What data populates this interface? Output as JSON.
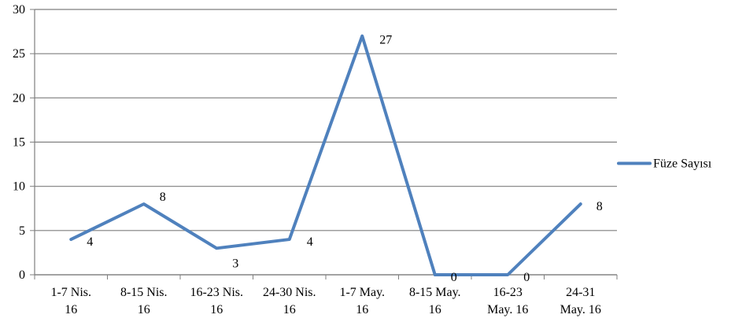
{
  "chart_data": {
    "type": "line",
    "title": "",
    "xlabel": "",
    "ylabel": "",
    "categories": [
      [
        "1-7 Nis.",
        "16"
      ],
      [
        "8-15 Nis.",
        "16"
      ],
      [
        "16-23 Nis.",
        "16"
      ],
      [
        "24-30 Nis.",
        "16"
      ],
      [
        "1-7 May.",
        "16"
      ],
      [
        "8-15 May.",
        "16"
      ],
      [
        "16-23",
        "May. 16"
      ],
      [
        "24-31",
        "May. 16"
      ]
    ],
    "series": [
      {
        "name": "Füze Sayısı",
        "values": [
          4,
          8,
          3,
          4,
          27,
          0,
          0,
          8
        ],
        "color": "#4f81bd"
      }
    ],
    "yticks": [
      0,
      5,
      10,
      15,
      20,
      25,
      30
    ],
    "ylim": [
      0,
      30
    ],
    "grid": true,
    "legend_position": "right"
  }
}
